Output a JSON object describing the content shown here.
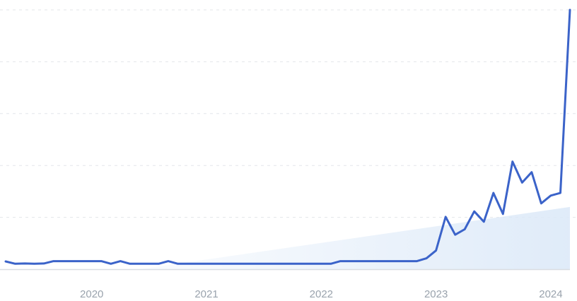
{
  "chart_data": {
    "type": "line",
    "title": "",
    "xlabel": "",
    "ylabel": "",
    "grid": true,
    "y_tick_labels_shown": false,
    "xlim": [
      "2019-04",
      "2024-03"
    ],
    "ylim": [
      0,
      100
    ],
    "x_ticks": [
      "2020",
      "2021",
      "2022",
      "2023",
      "2024"
    ],
    "colors": {
      "line": "#3b63c9",
      "trend_fill": "#dce9f8",
      "grid": "#e3e6ea",
      "axis": "#d9dde2",
      "tick_label": "#9aa3ad"
    },
    "trend": {
      "start": [
        "2020-06",
        0
      ],
      "end": [
        "2024-03",
        24
      ]
    },
    "series": [
      {
        "x": [
          "2019-04",
          "2019-05",
          "2019-06",
          "2019-07",
          "2019-08",
          "2019-09",
          "2019-10",
          "2019-11",
          "2019-12",
          "2020-01",
          "2020-02",
          "2020-03",
          "2020-04",
          "2020-05",
          "2020-06",
          "2020-07",
          "2020-08",
          "2020-09",
          "2020-10",
          "2020-11",
          "2020-12",
          "2021-01",
          "2021-02",
          "2021-03",
          "2021-04",
          "2021-05",
          "2021-06",
          "2021-07",
          "2021-08",
          "2021-09",
          "2021-10",
          "2021-11",
          "2021-12",
          "2022-01",
          "2022-02",
          "2022-03",
          "2022-04",
          "2022-05",
          "2022-06",
          "2022-07",
          "2022-08",
          "2022-09",
          "2022-10",
          "2022-11",
          "2022-12",
          "2023-01",
          "2023-02",
          "2023-03",
          "2023-04",
          "2023-05",
          "2023-06",
          "2023-07",
          "2023-08",
          "2023-09",
          "2023-10",
          "2023-11",
          "2023-12",
          "2024-01",
          "2024-02",
          "2024-03"
        ],
        "values": [
          3,
          2.1,
          2.2,
          2.1,
          2.2,
          3.1,
          3.1,
          3.1,
          3.1,
          3.1,
          3.1,
          2.1,
          3.1,
          2.1,
          2.1,
          2.1,
          2.1,
          3.1,
          2.1,
          2.1,
          2.1,
          2.1,
          2.1,
          2.1,
          2.1,
          2.1,
          2.1,
          2.1,
          2.1,
          2.1,
          2.1,
          2.1,
          2.1,
          2.1,
          2.1,
          3.1,
          3.1,
          3.1,
          3.1,
          3.1,
          3.1,
          3.1,
          3.1,
          3.1,
          4.2,
          7.2,
          20.2,
          13.3,
          15.4,
          22.3,
          18.3,
          29.4,
          21.3,
          41.5,
          33.4,
          37.4,
          25.4,
          28.4,
          29.4,
          100
        ]
      }
    ]
  }
}
